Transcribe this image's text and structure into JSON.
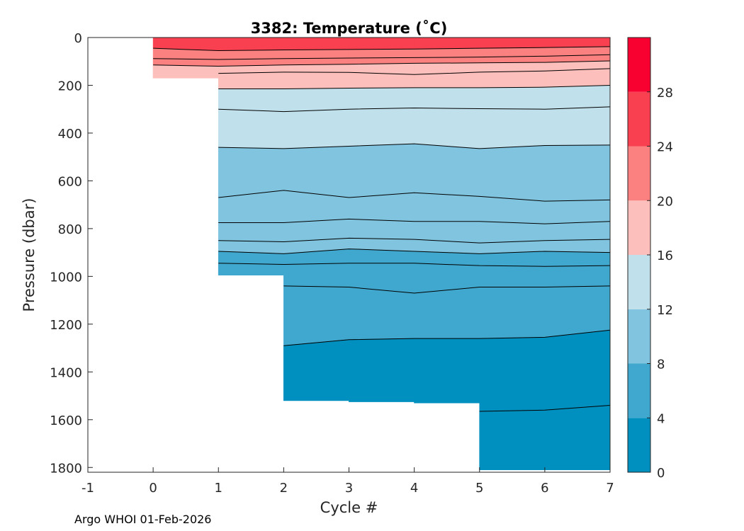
{
  "chart_data": {
    "type": "contour",
    "title": "3382:  Temperature (˚C)",
    "xlabel": "Cycle #",
    "ylabel": "Pressure (dbar)",
    "xlim": [
      -1,
      7
    ],
    "ylim": [
      0,
      1820
    ],
    "y_reversed": true,
    "xticks": [
      -1,
      0,
      1,
      2,
      3,
      4,
      5,
      6,
      7
    ],
    "yticks": [
      0,
      200,
      400,
      600,
      800,
      1000,
      1200,
      1400,
      1600,
      1800
    ],
    "colorbar": {
      "ticks": [
        0,
        4,
        8,
        12,
        16,
        20,
        24,
        28
      ],
      "range": [
        0,
        32
      ],
      "bins": [
        {
          "from": 0,
          "to": 4,
          "color": "#0090bf"
        },
        {
          "from": 4,
          "to": 8,
          "color": "#40a8cf"
        },
        {
          "from": 8,
          "to": 12,
          "color": "#80c4df"
        },
        {
          "from": 12,
          "to": 16,
          "color": "#c0e0eb"
        },
        {
          "from": 16,
          "to": 20,
          "color": "#fcbfbb"
        },
        {
          "from": 20,
          "to": 24,
          "color": "#fb8080"
        },
        {
          "from": 24,
          "to": 28,
          "color": "#f84050"
        },
        {
          "from": 28,
          "to": 32,
          "color": "#f80030"
        }
      ]
    },
    "cycles": [
      0,
      1,
      2,
      3,
      4,
      5,
      6,
      7
    ],
    "max_pressure": [
      170,
      995,
      1520,
      1525,
      1530,
      1810,
      1810,
      1810
    ],
    "isotherms": [
      {
        "temp": 24,
        "p": [
          45,
          55,
          52,
          50,
          48,
          45,
          42,
          38
        ]
      },
      {
        "temp": 22,
        "p": [
          88,
          92,
          88,
          86,
          84,
          82,
          78,
          72
        ]
      },
      {
        "temp": 20,
        "p": [
          115,
          120,
          115,
          112,
          108,
          106,
          104,
          98
        ]
      },
      {
        "temp": 18,
        "p": [
          null,
          150,
          145,
          146,
          155,
          145,
          140,
          130
        ]
      },
      {
        "temp": 16,
        "p": [
          null,
          215,
          215,
          212,
          210,
          210,
          208,
          200
        ]
      },
      {
        "temp": 14,
        "p": [
          null,
          300,
          310,
          300,
          295,
          298,
          300,
          290
        ]
      },
      {
        "temp": 12,
        "p": [
          null,
          460,
          465,
          455,
          445,
          465,
          452,
          450
        ]
      },
      {
        "temp": 11,
        "p": [
          null,
          670,
          640,
          670,
          650,
          665,
          685,
          680
        ]
      },
      {
        "temp": 10,
        "p": [
          null,
          775,
          775,
          760,
          770,
          770,
          780,
          770
        ]
      },
      {
        "temp": 9,
        "p": [
          null,
          850,
          855,
          840,
          845,
          860,
          850,
          845
        ]
      },
      {
        "temp": 8,
        "p": [
          null,
          895,
          905,
          885,
          895,
          905,
          895,
          900
        ]
      },
      {
        "temp": 7,
        "p": [
          null,
          945,
          950,
          945,
          945,
          955,
          958,
          955
        ]
      },
      {
        "temp": 6,
        "p": [
          null,
          null,
          1040,
          1045,
          1070,
          1045,
          1045,
          1040
        ]
      },
      {
        "temp": 4,
        "p": [
          null,
          null,
          1290,
          1265,
          1260,
          1260,
          1255,
          1225
        ]
      },
      {
        "temp": 3,
        "p": [
          null,
          null,
          null,
          null,
          null,
          1565,
          1560,
          1540
        ]
      }
    ]
  },
  "footer": {
    "credit": "Argo WHOI 01-Feb-2026"
  }
}
